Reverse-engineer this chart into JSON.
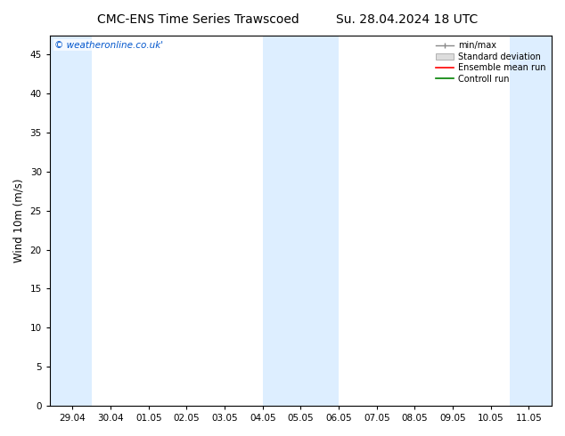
{
  "title_left": "CMC-ENS Time Series Trawscoed",
  "title_right": "Su. 28.04.2024 18 UTC",
  "ylabel": "Wind 10m (m/s)",
  "watermark": "© weatheronline.co.uk'",
  "ylim": [
    0,
    47.5
  ],
  "yticks": [
    0,
    5,
    10,
    15,
    20,
    25,
    30,
    35,
    40,
    45
  ],
  "xtick_labels": [
    "29.04",
    "30.04",
    "01.05",
    "02.05",
    "03.05",
    "04.05",
    "05.05",
    "06.05",
    "07.05",
    "08.05",
    "09.05",
    "10.05",
    "11.05"
  ],
  "shade_color": "#ddeeff",
  "background_color": "#ffffff",
  "legend_items": [
    "min/max",
    "Standard deviation",
    "Ensemble mean run",
    "Controll run"
  ],
  "legend_colors": [
    "#888888",
    "#cccccc",
    "#ff0000",
    "#008000"
  ],
  "title_fontsize": 10,
  "tick_fontsize": 7.5,
  "ylabel_fontsize": 8.5,
  "watermark_color": "#0055cc",
  "watermark_fontsize": 7.5
}
